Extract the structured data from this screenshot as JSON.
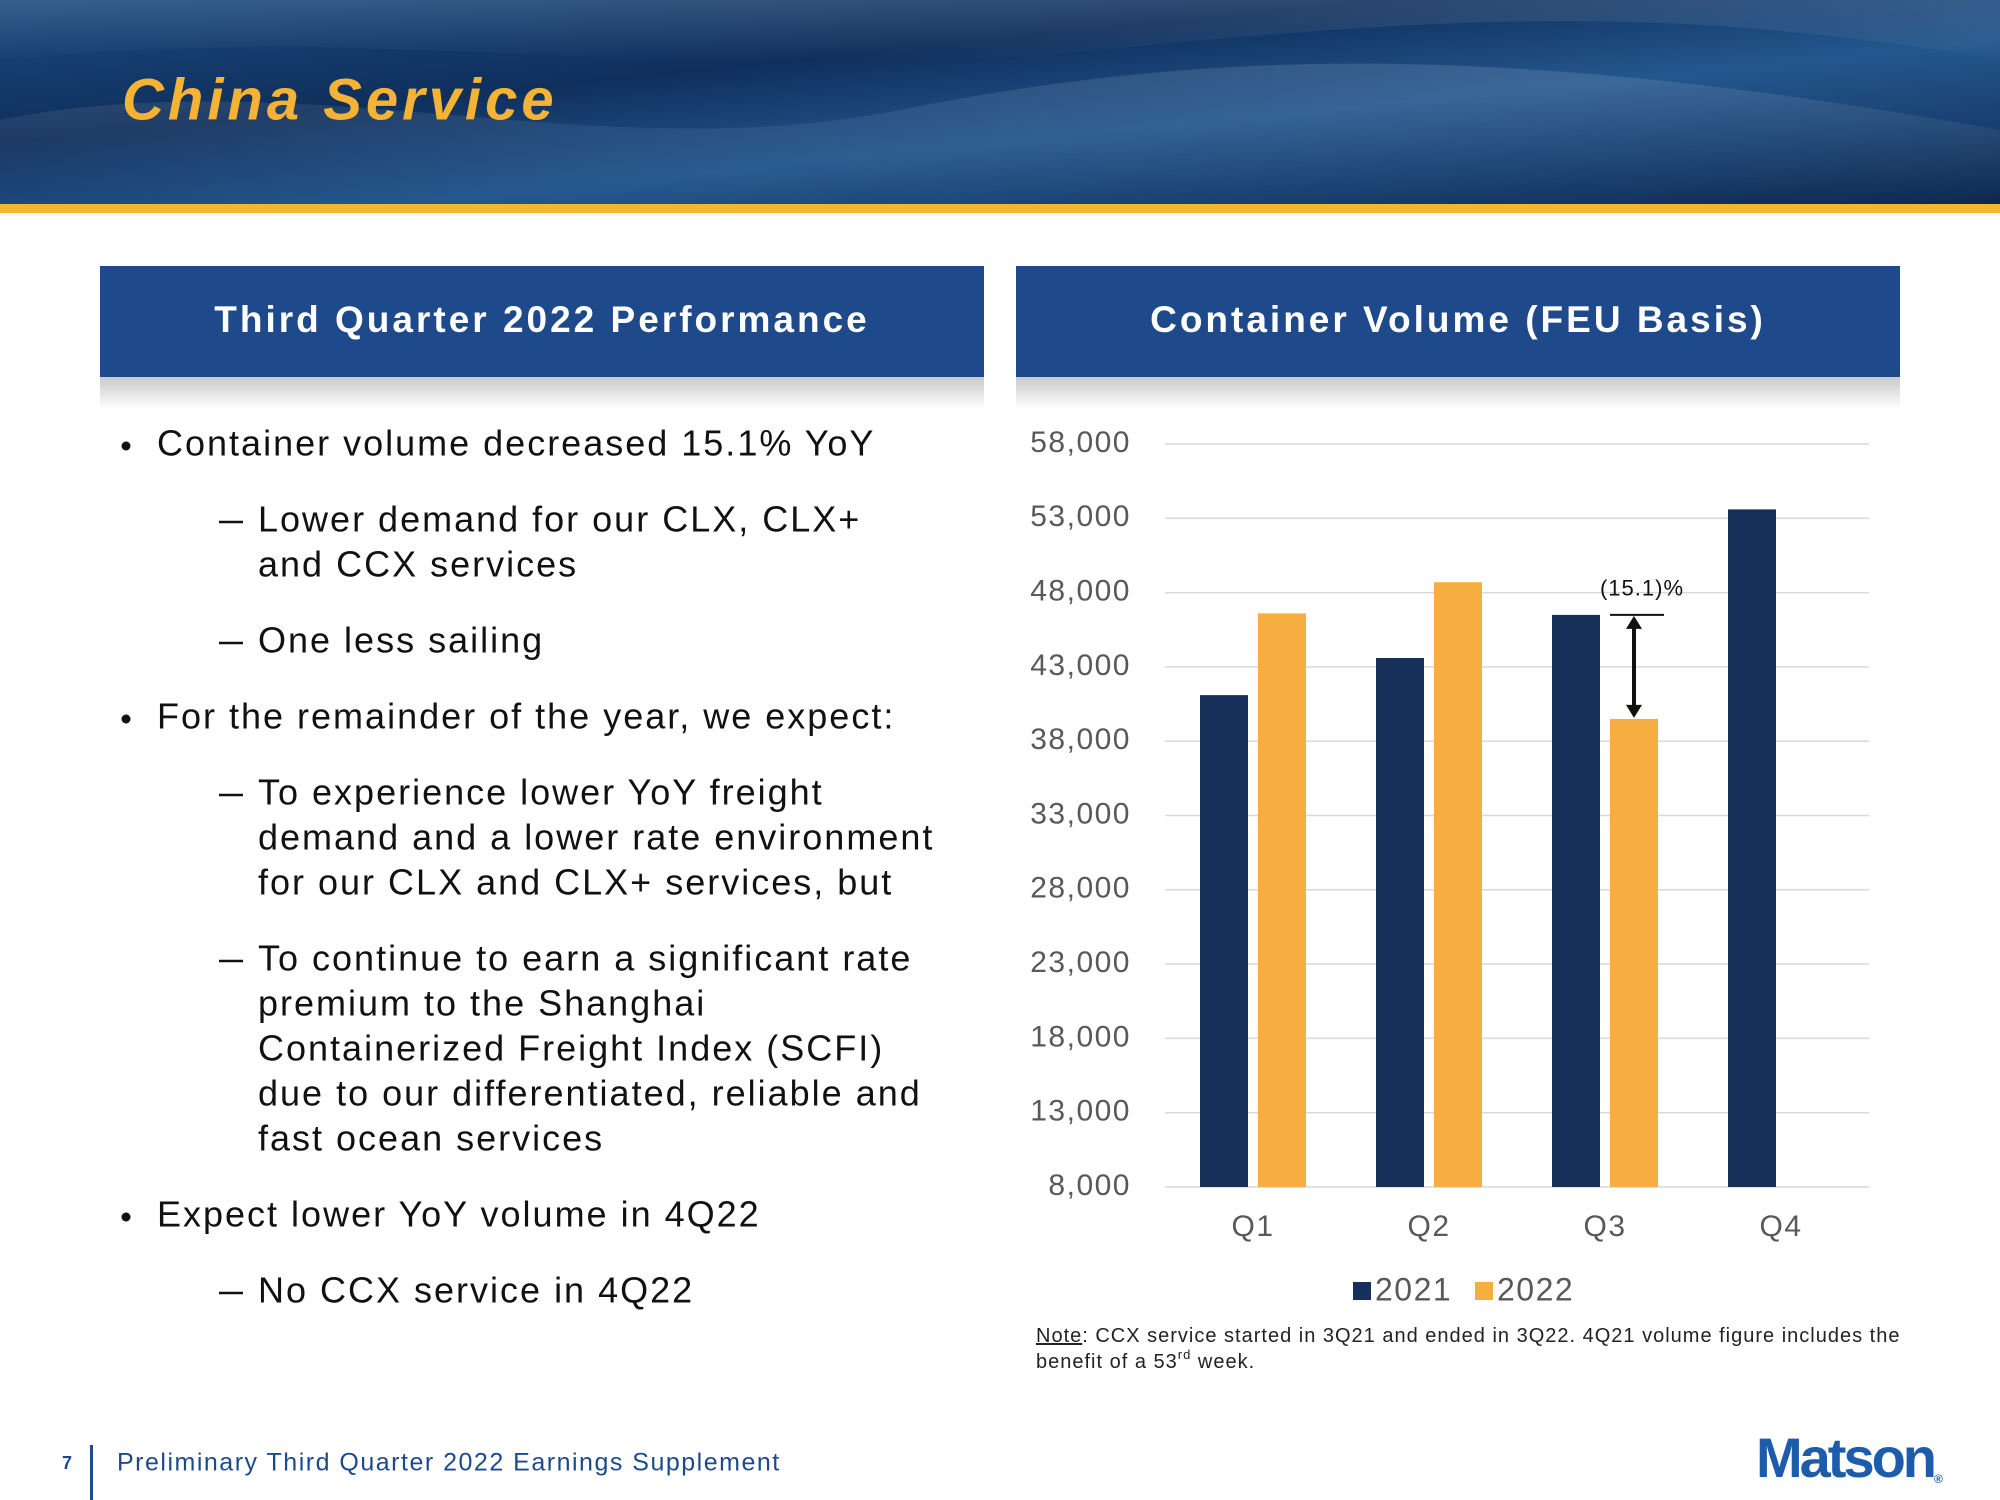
{
  "header": {
    "title": "China Service"
  },
  "left_panel": {
    "title": "Third Quarter 2022 Performance",
    "bullets": [
      {
        "text": "Container volume decreased 15.1% YoY",
        "sub": [
          [
            "Lower demand for our CLX, CLX+",
            "and CCX services"
          ],
          [
            "One less sailing"
          ]
        ]
      },
      {
        "text": "For the remainder of the year, we expect:",
        "sub": [
          [
            "To experience lower YoY freight",
            "demand and a lower rate environment",
            "for our CLX and CLX+ services, but"
          ],
          [
            "To continue to earn a significant rate",
            "premium to the Shanghai",
            "Containerized Freight Index (SCFI)",
            "due to our differentiated, reliable and",
            "fast ocean services"
          ]
        ]
      },
      {
        "text": "Expect lower YoY volume in 4Q22",
        "sub": [
          [
            "No CCX service in 4Q22"
          ]
        ]
      }
    ]
  },
  "chart_data": {
    "type": "bar",
    "title": "Container Volume (FEU Basis)",
    "categories": [
      "Q1",
      "Q2",
      "Q3",
      "Q4"
    ],
    "series": [
      {
        "name": "2021",
        "color": "#16305a",
        "values": [
          41100,
          43600,
          46500,
          53600
        ]
      },
      {
        "name": "2022",
        "color": "#f5ae3f",
        "values": [
          46600,
          48700,
          39500,
          null
        ]
      }
    ],
    "ylim": [
      8000,
      58000
    ],
    "yticks": [
      {
        "value": 8000,
        "label": "8,000"
      },
      {
        "value": 13000,
        "label": "13,000"
      },
      {
        "value": 18000,
        "label": "18,000"
      },
      {
        "value": 23000,
        "label": "23,000"
      },
      {
        "value": 28000,
        "label": "28,000"
      },
      {
        "value": 33000,
        "label": "33,000"
      },
      {
        "value": 38000,
        "label": "38,000"
      },
      {
        "value": 43000,
        "label": "43,000"
      },
      {
        "value": 48000,
        "label": "48,000"
      },
      {
        "value": 53000,
        "label": "53,000"
      },
      {
        "value": 58000,
        "label": "58,000"
      }
    ],
    "grid": true,
    "legend": "bottom",
    "annotation": "(15.1)%"
  },
  "note": {
    "label": "Note",
    "text": ": CCX service started in 3Q21 and ended in 3Q22. 4Q21 volume figure includes the",
    "line2": "benefit of a 53",
    "superscript": "rd",
    "line2_end": " week."
  },
  "footer": {
    "page": "7",
    "text": "Preliminary Third Quarter 2022 Earnings Supplement",
    "logo": "Matson",
    "logo_mark": "®"
  }
}
